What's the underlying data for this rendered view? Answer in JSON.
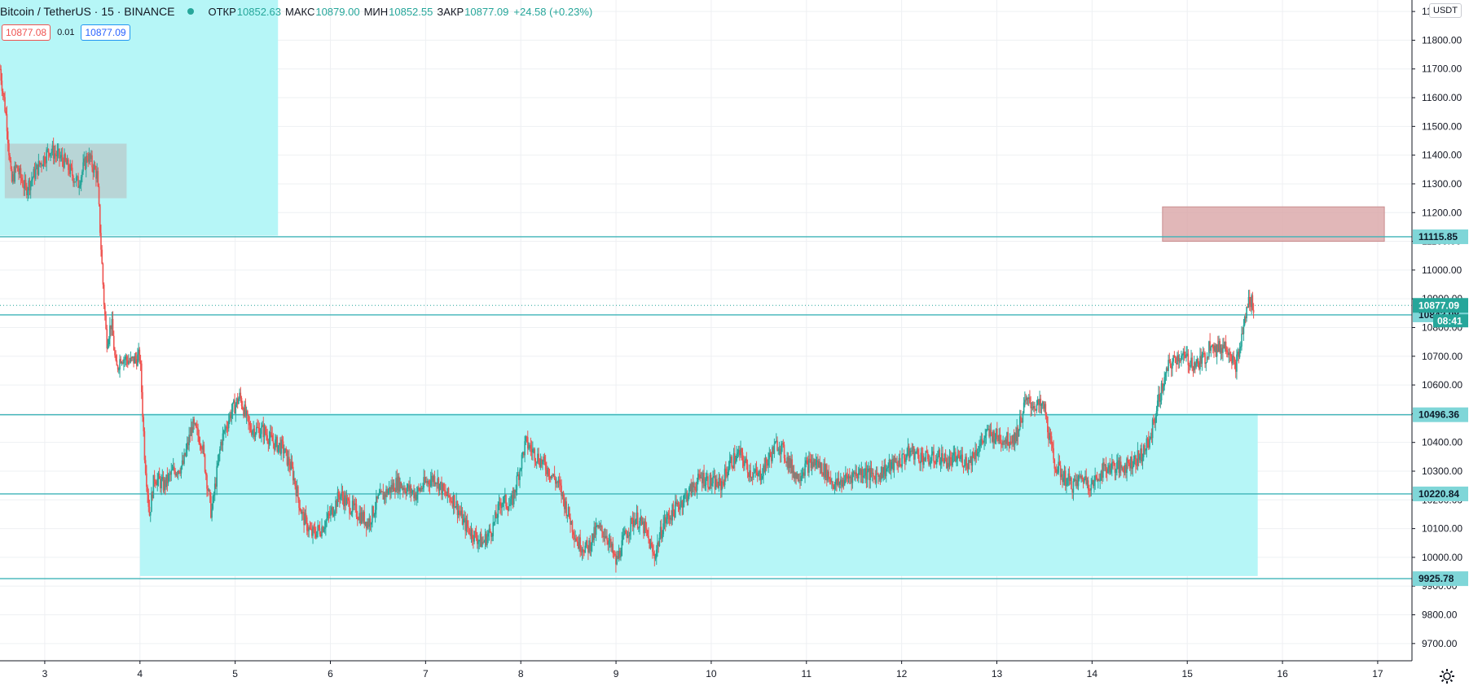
{
  "header": {
    "symbol": "Bitcoin / TetherUS · 15 · BINANCE",
    "open_label": "ОТКР",
    "open": "10852.63",
    "high_label": "МАКС",
    "high": "10879.00",
    "low_label": "МИН",
    "low": "10852.55",
    "close_label": "ЗАКР",
    "close": "10877.09",
    "change": "+24.58 (+0.23%)"
  },
  "spread": {
    "sell": "10877.08",
    "step": "0.01",
    "buy": "10877.09"
  },
  "currency": "USDT",
  "chart_data": {
    "type": "candlestick",
    "y_axis": {
      "min": 9640,
      "max": 11940,
      "ticks": [
        9700,
        9800,
        9900,
        10000,
        10100,
        10200,
        10300,
        10400,
        10500,
        10600,
        10700,
        10800,
        10900,
        11000,
        11100,
        11200,
        11300,
        11400,
        11500,
        11600,
        11700,
        11800,
        11900
      ],
      "tick_labels": [
        "9700.00",
        "9800.00",
        "9900.00",
        "10000.00",
        "10100.00",
        "10200.00",
        "10300.00",
        "10400.00",
        "10500.00",
        "10600.00",
        "10700.00",
        "10800.00",
        "10900.00",
        "11000.00",
        "11100.00",
        "11200.00",
        "11300.00",
        "11400.00",
        "11500.00",
        "11600.00",
        "11700.00",
        "11800.00",
        "11900.00"
      ]
    },
    "x_axis": {
      "min": 2.53,
      "max": 17.36,
      "ticks": [
        3,
        4,
        5,
        6,
        7,
        8,
        9,
        10,
        11,
        12,
        13,
        14,
        15,
        16,
        17
      ],
      "tick_labels": [
        "3",
        "4",
        "5",
        "6",
        "7",
        "8",
        "9",
        "10",
        "11",
        "12",
        "13",
        "14",
        "15",
        "16",
        "17"
      ]
    },
    "price_path": [
      [
        2.53,
        11700
      ],
      [
        2.6,
        11520
      ],
      [
        2.65,
        11300
      ],
      [
        2.7,
        11360
      ],
      [
        2.8,
        11280
      ],
      [
        2.95,
        11370
      ],
      [
        3.05,
        11420
      ],
      [
        3.2,
        11380
      ],
      [
        3.35,
        11300
      ],
      [
        3.45,
        11400
      ],
      [
        3.55,
        11330
      ],
      [
        3.62,
        10900
      ],
      [
        3.65,
        10750
      ],
      [
        3.7,
        10820
      ],
      [
        3.75,
        10650
      ],
      [
        3.8,
        10700
      ],
      [
        3.9,
        10680
      ],
      [
        4.0,
        10700
      ],
      [
        4.05,
        10350
      ],
      [
        4.1,
        10150
      ],
      [
        4.15,
        10280
      ],
      [
        4.25,
        10250
      ],
      [
        4.35,
        10300
      ],
      [
        4.45,
        10320
      ],
      [
        4.55,
        10460
      ],
      [
        4.65,
        10400
      ],
      [
        4.75,
        10150
      ],
      [
        4.85,
        10400
      ],
      [
        4.95,
        10500
      ],
      [
        5.05,
        10560
      ],
      [
        5.15,
        10450
      ],
      [
        5.3,
        10440
      ],
      [
        5.4,
        10400
      ],
      [
        5.5,
        10380
      ],
      [
        5.6,
        10300
      ],
      [
        5.7,
        10150
      ],
      [
        5.8,
        10080
      ],
      [
        5.9,
        10100
      ],
      [
        6.0,
        10150
      ],
      [
        6.1,
        10220
      ],
      [
        6.2,
        10180
      ],
      [
        6.3,
        10150
      ],
      [
        6.4,
        10120
      ],
      [
        6.5,
        10200
      ],
      [
        6.6,
        10230
      ],
      [
        6.7,
        10260
      ],
      [
        6.8,
        10240
      ],
      [
        6.9,
        10220
      ],
      [
        7.0,
        10260
      ],
      [
        7.1,
        10280
      ],
      [
        7.2,
        10220
      ],
      [
        7.3,
        10200
      ],
      [
        7.4,
        10120
      ],
      [
        7.5,
        10080
      ],
      [
        7.6,
        10050
      ],
      [
        7.7,
        10100
      ],
      [
        7.8,
        10200
      ],
      [
        7.9,
        10180
      ],
      [
        8.05,
        10400
      ],
      [
        8.15,
        10360
      ],
      [
        8.3,
        10300
      ],
      [
        8.4,
        10250
      ],
      [
        8.5,
        10150
      ],
      [
        8.6,
        10050
      ],
      [
        8.7,
        10030
      ],
      [
        8.8,
        10100
      ],
      [
        8.9,
        10080
      ],
      [
        9.0,
        9980
      ],
      [
        9.1,
        10080
      ],
      [
        9.2,
        10140
      ],
      [
        9.3,
        10100
      ],
      [
        9.4,
        10000
      ],
      [
        9.5,
        10120
      ],
      [
        9.6,
        10160
      ],
      [
        9.7,
        10200
      ],
      [
        9.8,
        10240
      ],
      [
        9.9,
        10280
      ],
      [
        10.0,
        10260
      ],
      [
        10.1,
        10250
      ],
      [
        10.2,
        10330
      ],
      [
        10.3,
        10360
      ],
      [
        10.4,
        10300
      ],
      [
        10.5,
        10280
      ],
      [
        10.6,
        10340
      ],
      [
        10.7,
        10400
      ],
      [
        10.8,
        10340
      ],
      [
        10.9,
        10280
      ],
      [
        11.0,
        10320
      ],
      [
        11.1,
        10330
      ],
      [
        11.2,
        10300
      ],
      [
        11.3,
        10250
      ],
      [
        11.4,
        10270
      ],
      [
        11.5,
        10290
      ],
      [
        11.6,
        10300
      ],
      [
        11.7,
        10280
      ],
      [
        11.8,
        10300
      ],
      [
        11.9,
        10320
      ],
      [
        12.0,
        10340
      ],
      [
        12.1,
        10370
      ],
      [
        12.2,
        10350
      ],
      [
        12.3,
        10340
      ],
      [
        12.4,
        10350
      ],
      [
        12.5,
        10330
      ],
      [
        12.6,
        10350
      ],
      [
        12.7,
        10330
      ],
      [
        12.8,
        10380
      ],
      [
        12.9,
        10430
      ],
      [
        13.0,
        10420
      ],
      [
        13.1,
        10410
      ],
      [
        13.2,
        10420
      ],
      [
        13.3,
        10540
      ],
      [
        13.4,
        10530
      ],
      [
        13.5,
        10520
      ],
      [
        13.55,
        10420
      ],
      [
        13.6,
        10330
      ],
      [
        13.7,
        10280
      ],
      [
        13.8,
        10250
      ],
      [
        13.9,
        10280
      ],
      [
        14.0,
        10250
      ],
      [
        14.1,
        10300
      ],
      [
        14.2,
        10320
      ],
      [
        14.3,
        10310
      ],
      [
        14.4,
        10330
      ],
      [
        14.5,
        10350
      ],
      [
        14.6,
        10400
      ],
      [
        14.7,
        10550
      ],
      [
        14.8,
        10660
      ],
      [
        14.9,
        10700
      ],
      [
        15.0,
        10690
      ],
      [
        15.1,
        10670
      ],
      [
        15.2,
        10700
      ],
      [
        15.25,
        10760
      ],
      [
        15.3,
        10720
      ],
      [
        15.4,
        10740
      ],
      [
        15.45,
        10720
      ],
      [
        15.5,
        10660
      ],
      [
        15.55,
        10720
      ],
      [
        15.6,
        10820
      ],
      [
        15.65,
        10900
      ],
      [
        15.7,
        10877
      ]
    ],
    "horizontal_lines": [
      {
        "price": 11115.85,
        "label": "11115.85"
      },
      {
        "price": 10843.98,
        "label": "10843.98"
      },
      {
        "price": 10496.36,
        "label": "10496.36"
      },
      {
        "price": 10220.84,
        "label": "10220.84"
      },
      {
        "price": 9925.78,
        "label": "9925.78"
      }
    ],
    "last_price": {
      "price": 10877.09,
      "label": "10877.09",
      "countdown": "08:41"
    },
    "zones": [
      {
        "x0": 2.53,
        "x1": 5.45,
        "y0": 11120,
        "y1": 11940,
        "color": "#b2f5f7",
        "opacity": 0.95
      },
      {
        "x0": 2.58,
        "x1": 3.86,
        "y0": 11250,
        "y1": 11440,
        "color": "#b8c9cb",
        "opacity": 0.75
      },
      {
        "x0": 4.0,
        "x1": 15.74,
        "y0": 9935,
        "y1": 10500,
        "color": "#b2f5f7",
        "opacity": 0.95
      },
      {
        "x0": 14.74,
        "x1": 17.07,
        "y0": 11100,
        "y1": 11220,
        "color": "#d9a5a6",
        "opacity": 0.8
      }
    ]
  }
}
